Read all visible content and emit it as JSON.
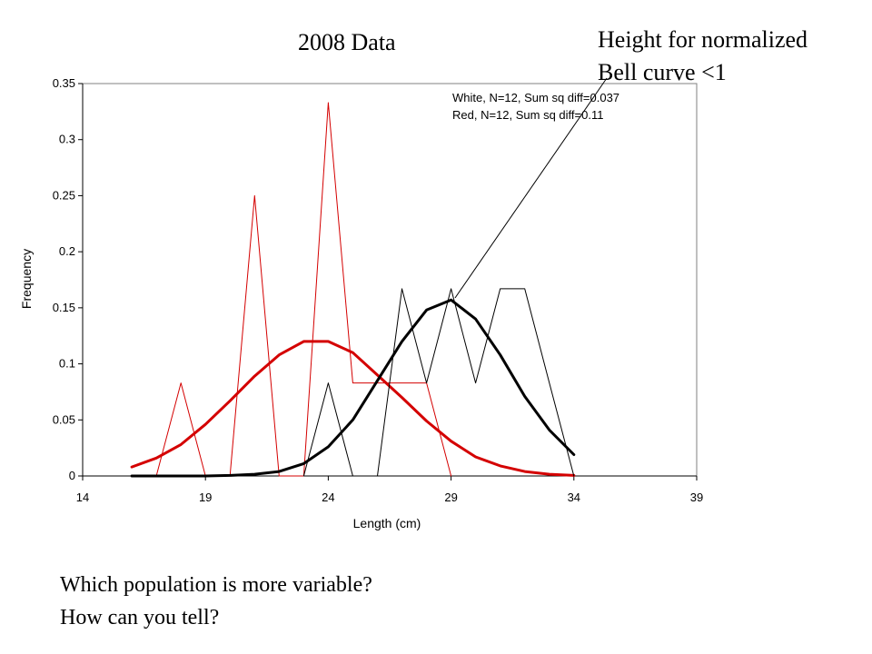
{
  "slide": {
    "title": "2008 Data",
    "callout_lines": [
      "Height for normalized",
      "Bell curve <1"
    ],
    "questions": [
      "Which population is more variable?",
      "How can you tell?"
    ]
  },
  "chart_data": {
    "type": "line",
    "title": "2008 Data",
    "xlabel": "Length (cm)",
    "ylabel": "Frequency",
    "xlim": [
      14,
      39
    ],
    "ylim": [
      0,
      0.35
    ],
    "xticks": [
      14,
      19,
      24,
      29,
      34,
      39
    ],
    "yticks": [
      0,
      0.05,
      0.1,
      0.15,
      0.2,
      0.25,
      0.3,
      0.35
    ],
    "ytick_labels": [
      "0",
      "0.05",
      "0.1",
      "0.15",
      "0.2",
      "0.25",
      "0.3",
      "0.35"
    ],
    "grid": false,
    "legend": {
      "position": "top-right",
      "entries": [
        "White, N=12, Sum sq diff=0.037",
        "Red, N=12, Sum sq diff=0.11"
      ]
    },
    "series": [
      {
        "name": "Red",
        "kind": "observed",
        "color": "#d40000",
        "x": [
          17,
          18,
          19,
          20,
          21,
          22,
          23,
          24,
          25,
          26,
          27,
          28,
          29
        ],
        "y": [
          0,
          0.083,
          0,
          0,
          0.25,
          0,
          0,
          0.333,
          0.083,
          0.083,
          0.083,
          0.083,
          0
        ]
      },
      {
        "name": "Red",
        "kind": "normal-fit",
        "color": "#d40000",
        "x": [
          16,
          17,
          18,
          19,
          20,
          21,
          22,
          23,
          24,
          25,
          26,
          27,
          28,
          29,
          30,
          31,
          32,
          33,
          34
        ],
        "y": [
          0.008,
          0.016,
          0.028,
          0.046,
          0.067,
          0.089,
          0.108,
          0.12,
          0.12,
          0.11,
          0.09,
          0.07,
          0.049,
          0.031,
          0.017,
          0.009,
          0.004,
          0.0015,
          0.0005
        ]
      },
      {
        "name": "White",
        "kind": "observed",
        "color": "#000000",
        "x": [
          23,
          24,
          25,
          26,
          27,
          28,
          29,
          30,
          31,
          32,
          33,
          34
        ],
        "y": [
          0,
          0.083,
          0,
          0,
          0.167,
          0.083,
          0.167,
          0.083,
          0.167,
          0.167,
          0.083,
          0
        ]
      },
      {
        "name": "White",
        "kind": "normal-fit",
        "color": "#000000",
        "x": [
          16,
          17,
          18,
          19,
          20,
          21,
          22,
          23,
          24,
          25,
          26,
          27,
          28,
          29,
          30,
          31,
          32,
          33,
          34
        ],
        "y": [
          0,
          0,
          0,
          0,
          0.0005,
          0.0015,
          0.004,
          0.011,
          0.026,
          0.05,
          0.085,
          0.12,
          0.148,
          0.157,
          0.14,
          0.108,
          0.071,
          0.041,
          0.019
        ]
      }
    ]
  }
}
